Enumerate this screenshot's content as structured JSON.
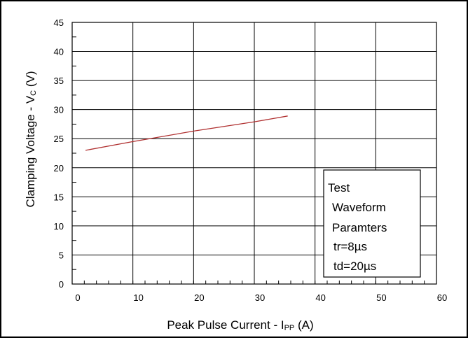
{
  "chart_data": {
    "type": "line",
    "xlabel_main": "Peak Pulse Current - I",
    "xlabel_sub": "PP",
    "xlabel_unit": " (A)",
    "ylabel_main": "Clamping Voltage - V",
    "ylabel_sub": "C",
    "ylabel_unit": " (V)",
    "xlim": [
      0,
      60
    ],
    "ylim": [
      0,
      45
    ],
    "x_ticks": [
      0,
      10,
      20,
      30,
      40,
      50,
      60
    ],
    "y_ticks": [
      0,
      5,
      10,
      15,
      20,
      25,
      30,
      35,
      40,
      45
    ],
    "grid": true,
    "series": [
      {
        "color": "#b03030",
        "x": [
          2.2,
          10,
          20,
          30,
          35.5
        ],
        "y": [
          23.0,
          24.5,
          26.3,
          27.9,
          28.9
        ]
      }
    ],
    "annotation": {
      "lines": [
        "Test",
        "Waveform",
        "Paramters",
        "tr=8µs",
        "td=20µs"
      ],
      "position": "bottom-right"
    }
  }
}
